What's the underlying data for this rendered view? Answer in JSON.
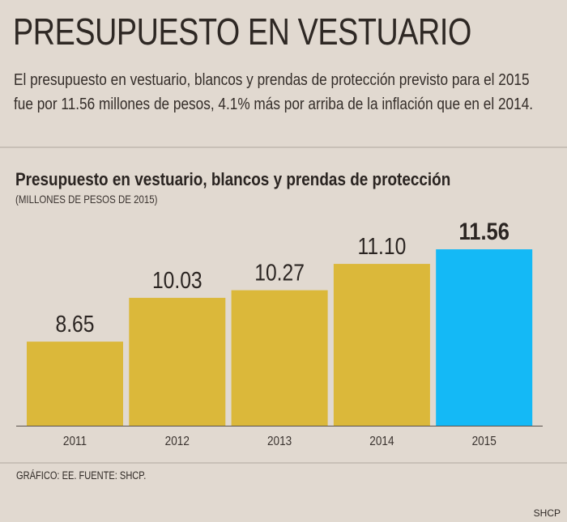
{
  "header": {
    "title": "PRESUPUESTO EN VESTUARIO",
    "intro": "El presupuesto en vestuario, blancos y prendas de protección previsto para el 2015 fue por 11.56 millones de pesos, 4.1% más por arriba de la inflación que en el 2014."
  },
  "footer": {
    "source": "GRÁFICO: EE. FUENTE: SHCP.",
    "credit": "SHCP"
  },
  "chart_data": {
    "type": "bar",
    "title": "Presupuesto en vestuario, blancos y prendas de protección",
    "subtitle": "(MILLONES DE PESOS DE 2015)",
    "categories": [
      "2011",
      "2012",
      "2013",
      "2014",
      "2015"
    ],
    "values": [
      8.65,
      10.03,
      10.27,
      11.1,
      11.56
    ],
    "value_labels": [
      "8.65",
      "10.03",
      "10.27",
      "11.10",
      "11.56"
    ],
    "highlight_index": 4,
    "colors": {
      "default": "#dbb83a",
      "highlight": "#14b9f6"
    },
    "ylim": [
      6,
      11.56
    ],
    "grid": false,
    "xlabel": "",
    "ylabel": ""
  }
}
